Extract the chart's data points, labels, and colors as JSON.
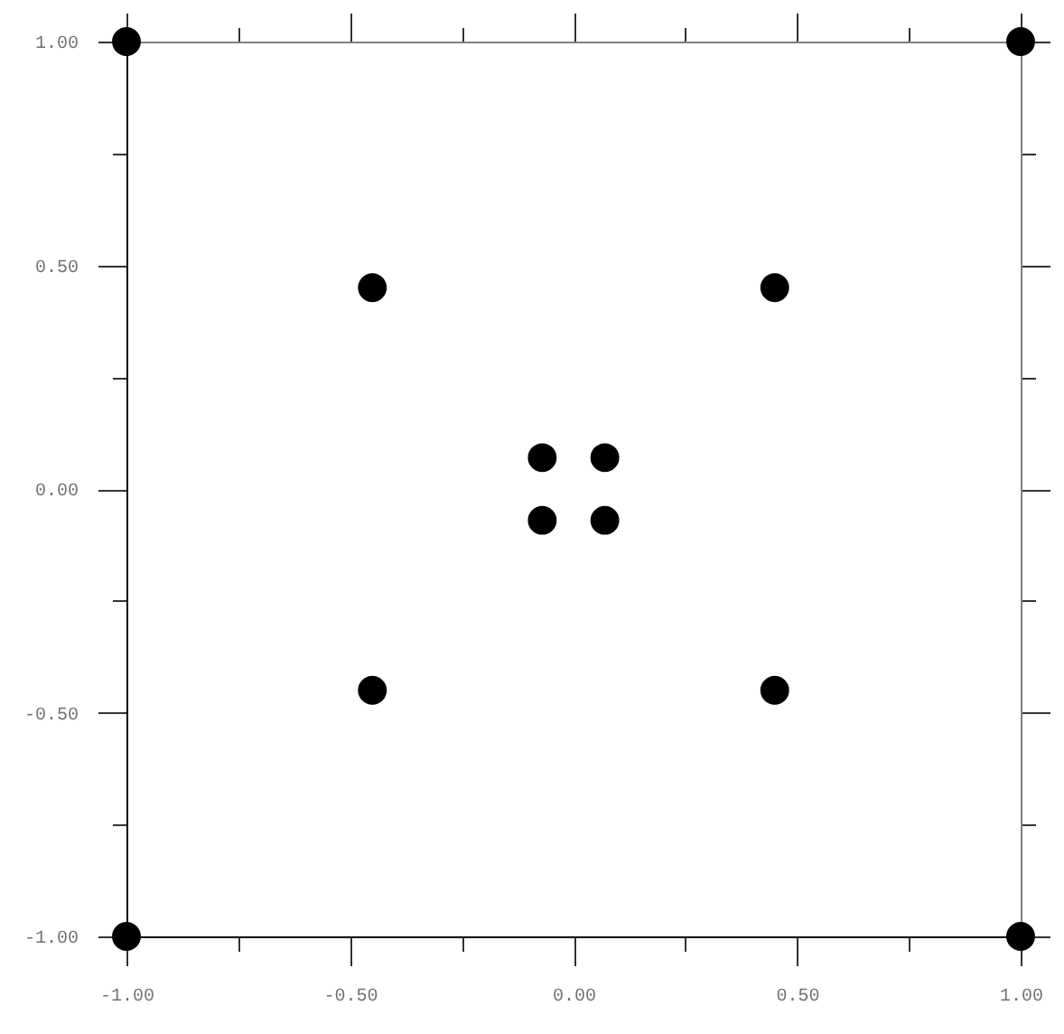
{
  "chart_data": {
    "type": "scatter",
    "marker": "circle",
    "x": [
      -1,
      1,
      -1,
      1,
      -0.45,
      0.45,
      -0.45,
      0.45,
      -0.07,
      0.07,
      -0.07,
      0.07
    ],
    "series": [
      {
        "color": "#000000",
        "values": [
          1,
          1,
          -1,
          -1,
          0.45,
          0.45,
          -0.45,
          -0.45,
          0.07,
          0.07,
          -0.07,
          -0.07
        ]
      }
    ],
    "xlim": [
      -1,
      1
    ],
    "ylim": [
      -1,
      1
    ],
    "xticks": [
      {
        "value": -1,
        "label": "-1.00"
      },
      {
        "value": -0.75,
        "label": null
      },
      {
        "value": -0.5,
        "label": "-0.50"
      },
      {
        "value": -0.25,
        "label": null
      },
      {
        "value": 0,
        "label": "0.00"
      },
      {
        "value": 0.25,
        "label": null
      },
      {
        "value": 0.5,
        "label": "0.50"
      },
      {
        "value": 0.75,
        "label": null
      },
      {
        "value": 1,
        "label": "1.00"
      }
    ],
    "yticks": [
      {
        "value": -1,
        "label": "-1.00"
      },
      {
        "value": -0.75,
        "label": null
      },
      {
        "value": -0.5,
        "label": "-0.50"
      },
      {
        "value": -0.25,
        "label": null
      },
      {
        "value": 0,
        "label": "0.00"
      },
      {
        "value": 0.25,
        "label": null
      },
      {
        "value": 0.5,
        "label": "0.50"
      },
      {
        "value": 0.75,
        "label": null
      },
      {
        "value": 1,
        "label": "1.00"
      }
    ]
  }
}
